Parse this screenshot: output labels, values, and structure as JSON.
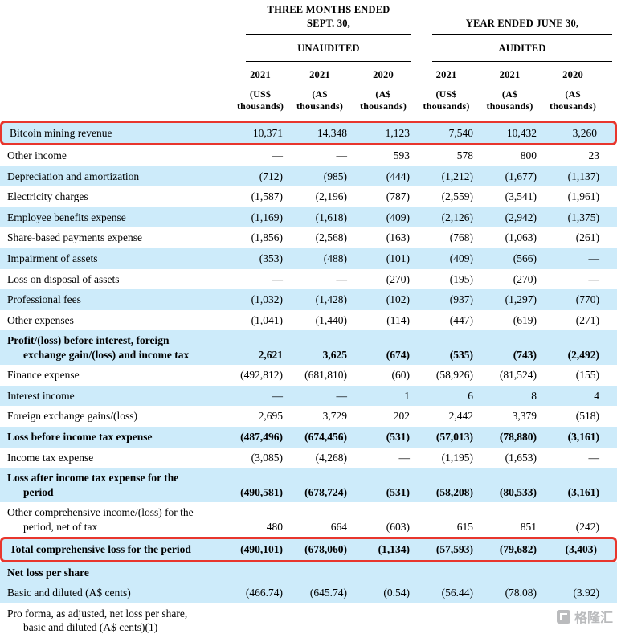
{
  "colors": {
    "row_shade": "#cdebfa",
    "highlight_border": "#e8362d"
  },
  "header": {
    "period_group_1": "THREE MONTHS ENDED SEPT. 30,",
    "period_group_2": "YEAR ENDED JUNE 30,",
    "audit_status_1": "UNAUDITED",
    "audit_status_2": "AUDITED",
    "years": [
      "2021",
      "2021",
      "2020",
      "2021",
      "2021",
      "2020"
    ],
    "units": [
      "(US$ thousands)",
      "(A$ thousands)",
      "(A$ thousands)",
      "(US$ thousands)",
      "(A$ thousands)",
      "(A$ thousands)"
    ]
  },
  "table": {
    "rows": [
      {
        "label": "Bitcoin mining revenue",
        "values": [
          "10,371",
          "14,348",
          "1,123",
          "7,540",
          "10,432",
          "3,260"
        ],
        "shaded": true,
        "bold": false,
        "boxed": true
      },
      {
        "label": "Other income",
        "values": [
          "—",
          "—",
          "593",
          "578",
          "800",
          "23"
        ],
        "shaded": false,
        "bold": false,
        "boxed": false
      },
      {
        "label": "Depreciation and amortization",
        "values": [
          "(712)",
          "(985)",
          "(444)",
          "(1,212)",
          "(1,677)",
          "(1,137)"
        ],
        "shaded": true,
        "bold": false,
        "boxed": false
      },
      {
        "label": "Electricity charges",
        "values": [
          "(1,587)",
          "(2,196)",
          "(787)",
          "(2,559)",
          "(3,541)",
          "(1,961)"
        ],
        "shaded": false,
        "bold": false,
        "boxed": false
      },
      {
        "label": "Employee benefits expense",
        "values": [
          "(1,169)",
          "(1,618)",
          "(409)",
          "(2,126)",
          "(2,942)",
          "(1,375)"
        ],
        "shaded": true,
        "bold": false,
        "boxed": false
      },
      {
        "label": "Share-based payments expense",
        "values": [
          "(1,856)",
          "(2,568)",
          "(163)",
          "(768)",
          "(1,063)",
          "(261)"
        ],
        "shaded": false,
        "bold": false,
        "boxed": false
      },
      {
        "label": "Impairment of assets",
        "values": [
          "(353)",
          "(488)",
          "(101)",
          "(409)",
          "(566)",
          "—"
        ],
        "shaded": true,
        "bold": false,
        "boxed": false
      },
      {
        "label": "Loss on disposal of assets",
        "values": [
          "—",
          "—",
          "(270)",
          "(195)",
          "(270)",
          "—"
        ],
        "shaded": false,
        "bold": false,
        "boxed": false
      },
      {
        "label": "Professional fees",
        "values": [
          "(1,032)",
          "(1,428)",
          "(102)",
          "(937)",
          "(1,297)",
          "(770)"
        ],
        "shaded": true,
        "bold": false,
        "boxed": false
      },
      {
        "label": "Other expenses",
        "values": [
          "(1,041)",
          "(1,440)",
          "(114)",
          "(447)",
          "(619)",
          "(271)"
        ],
        "shaded": false,
        "bold": false,
        "boxed": false
      },
      {
        "label": "Profit/(loss) before interest, foreign\nexchange gain/(loss) and income tax",
        "values": [
          "2,621",
          "3,625",
          "(674)",
          "(535)",
          "(743)",
          "(2,492)"
        ],
        "shaded": true,
        "bold": true,
        "boxed": false
      },
      {
        "label": "Finance expense",
        "values": [
          "(492,812)",
          "(681,810)",
          "(60)",
          "(58,926)",
          "(81,524)",
          "(155)"
        ],
        "shaded": false,
        "bold": false,
        "boxed": false
      },
      {
        "label": "Interest income",
        "values": [
          "—",
          "—",
          "1",
          "6",
          "8",
          "4"
        ],
        "shaded": true,
        "bold": false,
        "boxed": false
      },
      {
        "label": "Foreign exchange gains/(loss)",
        "values": [
          "2,695",
          "3,729",
          "202",
          "2,442",
          "3,379",
          "(518)"
        ],
        "shaded": false,
        "bold": false,
        "boxed": false
      },
      {
        "label": "Loss before income tax expense",
        "values": [
          "(487,496)",
          "(674,456)",
          "(531)",
          "(57,013)",
          "(78,880)",
          "(3,161)"
        ],
        "shaded": true,
        "bold": true,
        "boxed": false
      },
      {
        "label": "Income tax expense",
        "values": [
          "(3,085)",
          "(4,268)",
          "—",
          "(1,195)",
          "(1,653)",
          "—"
        ],
        "shaded": false,
        "bold": false,
        "boxed": false
      },
      {
        "label": "Loss after income tax expense for the\nperiod",
        "values": [
          "(490,581)",
          "(678,724)",
          "(531)",
          "(58,208)",
          "(80,533)",
          "(3,161)"
        ],
        "shaded": true,
        "bold": true,
        "boxed": false
      },
      {
        "label": "Other comprehensive income/(loss) for the\nperiod, net of tax",
        "values": [
          "480",
          "664",
          "(603)",
          "615",
          "851",
          "(242)"
        ],
        "shaded": false,
        "bold": false,
        "boxed": false
      },
      {
        "label": "Total comprehensive loss for the period",
        "values": [
          "(490,101)",
          "(678,060)",
          "(1,134)",
          "(57,593)",
          "(79,682)",
          "(3,403)"
        ],
        "shaded": true,
        "bold": true,
        "boxed": true
      },
      {
        "label": "Net loss per share",
        "values": [
          "",
          "",
          "",
          "",
          "",
          ""
        ],
        "shaded": true,
        "bold": true,
        "boxed": false
      },
      {
        "label": "Basic and diluted (A$ cents)",
        "values": [
          "(466.74)",
          "(645.74)",
          "(0.54)",
          "(56.44)",
          "(78.08)",
          "(3.92)"
        ],
        "shaded": true,
        "bold": false,
        "boxed": false
      },
      {
        "label": "Pro forma, as adjusted, net loss per share,\nbasic and diluted (A$ cents)(1)",
        "values": [
          "",
          "",
          "",
          "",
          "",
          ""
        ],
        "shaded": false,
        "bold": false,
        "boxed": false
      }
    ]
  },
  "watermark": {
    "text": "格隆汇"
  }
}
